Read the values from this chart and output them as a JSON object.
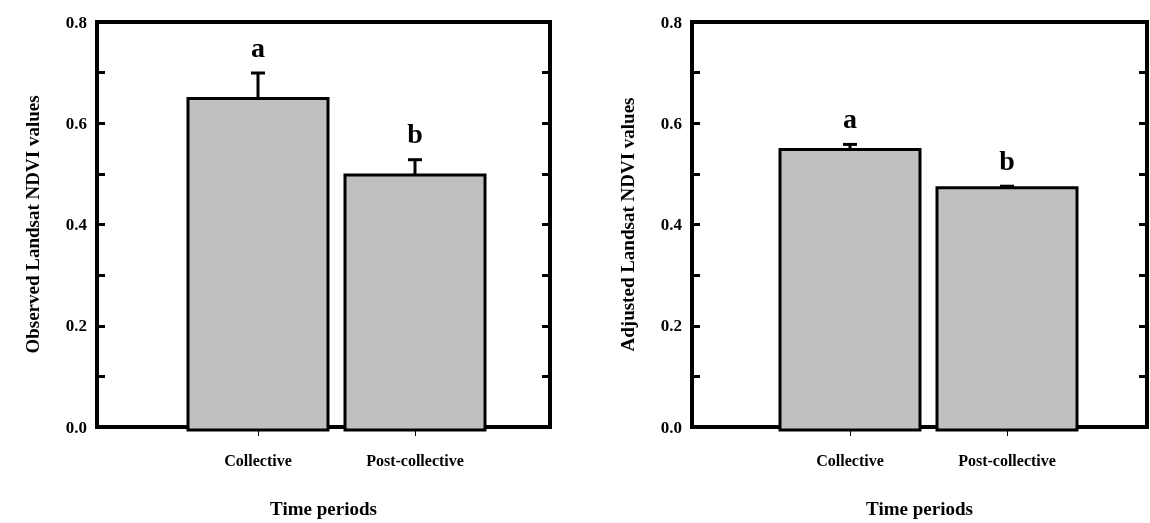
{
  "chart_data": [
    {
      "type": "bar",
      "xlabel": "Time periods",
      "ylabel": "Observed Landsat NDVI values",
      "categories": [
        "Collective",
        "Post-collective"
      ],
      "values": [
        0.65,
        0.5
      ],
      "errors": [
        0.05,
        0.03
      ],
      "color": "#c0c0c0",
      "ylim": [
        0,
        0.8
      ],
      "yticks": [
        {
          "value": 0,
          "label": "0.0"
        },
        {
          "value": 0.1,
          "label": null
        },
        0.2,
        {
          "value": 0.3,
          "label": null
        },
        0.4,
        {
          "value": 0.5,
          "label": null
        },
        0.6,
        {
          "value": 0.7,
          "label": null
        },
        0.8
      ],
      "annotations": [
        {
          "text": "a",
          "x": "Collective",
          "y": 0.7
        },
        {
          "text": "b",
          "x": "Post-collective",
          "y": 0.53
        }
      ],
      "grid": false
    },
    {
      "type": "bar",
      "xlabel": "Time periods",
      "ylabel": "Adjusted Landsat NDVI values",
      "categories": [
        "Collective",
        "Post-collective"
      ],
      "values": [
        0.55,
        0.475
      ],
      "errors": [
        0.01,
        0.003
      ],
      "color": "#c0c0c0",
      "ylim": [
        0,
        0.8
      ],
      "yticks": [
        {
          "value": 0,
          "label": "0.0"
        },
        {
          "value": 0.1,
          "label": null
        },
        0.2,
        {
          "value": 0.3,
          "label": null
        },
        0.4,
        {
          "value": 0.5,
          "label": null
        },
        0.6,
        {
          "value": 0.7,
          "label": null
        },
        0.8
      ],
      "annotations": [
        {
          "text": "a",
          "x": "Collective",
          "y": 0.56
        },
        {
          "text": "b",
          "x": "Post-collective",
          "y": 0.478
        }
      ],
      "grid": false
    }
  ]
}
